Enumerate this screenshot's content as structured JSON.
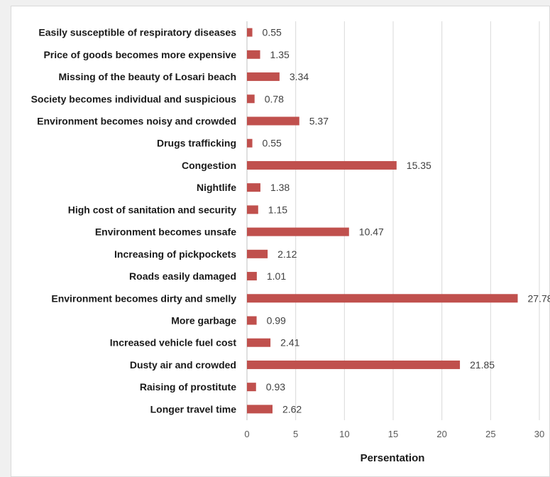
{
  "chart_data": {
    "type": "bar",
    "orientation": "horizontal",
    "xlabel": "Persentation",
    "ylabel": "",
    "xlim": [
      0,
      30
    ],
    "xticks": [
      "0",
      "5",
      "10",
      "15",
      "20",
      "25",
      "30"
    ],
    "grid": "vertical",
    "bar_color": "#c0504d",
    "categories": [
      "Easily susceptible of respiratory diseases",
      "Price of goods becomes more expensive",
      "Missing of the beauty of Losari beach",
      "Society becomes individual and suspicious",
      "Environment becomes noisy and crowded",
      "Drugs trafficking",
      "Congestion",
      "Nightlife",
      "High cost of sanitation and security",
      "Environment becomes unsafe",
      "Increasing of pickpockets",
      "Roads easily damaged",
      "Environment becomes dirty and smelly",
      "More garbage",
      "Increased vehicle fuel cost",
      "Dusty air and crowded",
      "Raising of prostitute",
      "Longer travel time"
    ],
    "values": [
      0.55,
      1.35,
      3.34,
      0.78,
      5.37,
      0.55,
      15.35,
      1.38,
      1.15,
      10.47,
      2.12,
      1.01,
      27.78,
      0.99,
      2.41,
      21.85,
      0.93,
      2.62
    ],
    "value_labels": [
      "0.55",
      "1.35",
      "3.34",
      "0.78",
      "5.37",
      "0.55",
      "15.35",
      "1.38",
      "1.15",
      "10.47",
      "2.12",
      "1.01",
      "27.78",
      "0.99",
      "2.41",
      "21.85",
      "0.93",
      "2.62"
    ]
  }
}
